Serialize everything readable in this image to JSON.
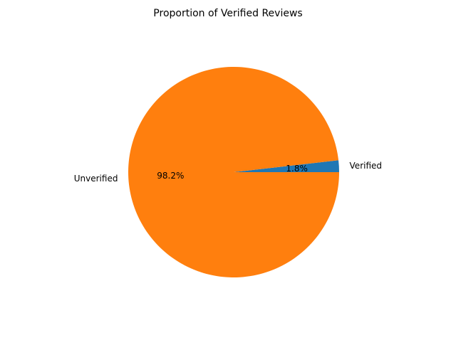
{
  "chart_data": {
    "type": "pie",
    "title": "Proportion of Verified Reviews",
    "slices": [
      {
        "label": "Verified",
        "value": 1.8,
        "pct_label": "1.8%",
        "color": "#1f77b4"
      },
      {
        "label": "Unverified",
        "value": 98.2,
        "pct_label": "98.2%",
        "color": "#ff7f0e"
      }
    ],
    "start_angle_deg": 0,
    "direction": "counterclockwise",
    "legend": "none"
  }
}
